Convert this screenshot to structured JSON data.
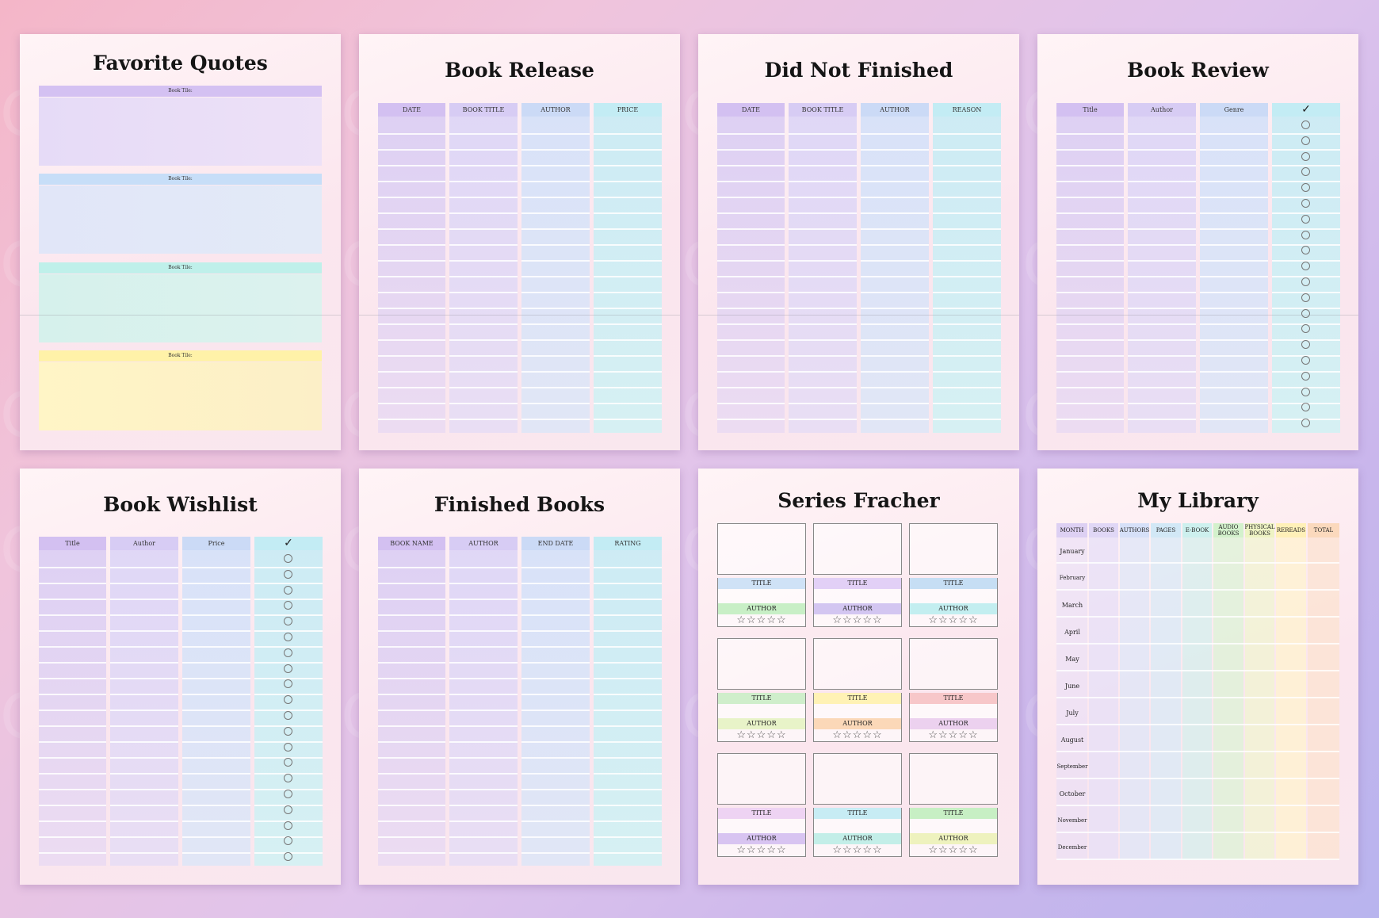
{
  "watermark": "CraftNest",
  "pages": {
    "favorite_quotes": {
      "title": "Favorite Quotes",
      "book_title_label": "Book Tile:"
    },
    "book_release": {
      "title": "Book Release",
      "columns": [
        "DATE",
        "BOOK TITLE",
        "AUTHOR",
        "PRICE"
      ]
    },
    "did_not_finished": {
      "title": "Did Not Finished",
      "columns": [
        "DATE",
        "BOOK TITLE",
        "AUTHOR",
        "REASON"
      ]
    },
    "book_review": {
      "title": "Book Review",
      "columns": [
        "Title",
        "Author",
        "Genre"
      ],
      "check": "✓"
    },
    "book_wishlist": {
      "title": "Book Wishlist",
      "columns": [
        "Title",
        "Author",
        "Price"
      ],
      "check": "✓"
    },
    "finished_books": {
      "title": "Finished Books",
      "columns": [
        "BOOK NAME",
        "AUTHOR",
        "END DATE",
        "RATING"
      ]
    },
    "series_tracker": {
      "title": "Series Fracher",
      "title_label": "TITLE",
      "author_label": "AUTHOR",
      "stars": "☆☆☆☆☆"
    },
    "my_library": {
      "title": "My Library",
      "columns": [
        "MONTH",
        "BOOKS",
        "AUTHORS",
        "PAGES",
        "E-BOOK",
        "AUDIO BOOKS",
        "PHYSICAL BOOKS",
        "REREADS",
        "TOTAL"
      ],
      "months": [
        "January",
        "February",
        "March",
        "April",
        "May",
        "June",
        "July",
        "August",
        "September",
        "October",
        "November",
        "December"
      ]
    }
  },
  "colors": {
    "purple": "#d9c6f3",
    "blue": "#c9dcf6",
    "teal": "#c3eee9",
    "cyan": "#c9f0f4",
    "yellow": "#fff0b3",
    "green": "#c8efc6",
    "orange": "#fbd8b8",
    "pink": "#f6c9d4"
  }
}
